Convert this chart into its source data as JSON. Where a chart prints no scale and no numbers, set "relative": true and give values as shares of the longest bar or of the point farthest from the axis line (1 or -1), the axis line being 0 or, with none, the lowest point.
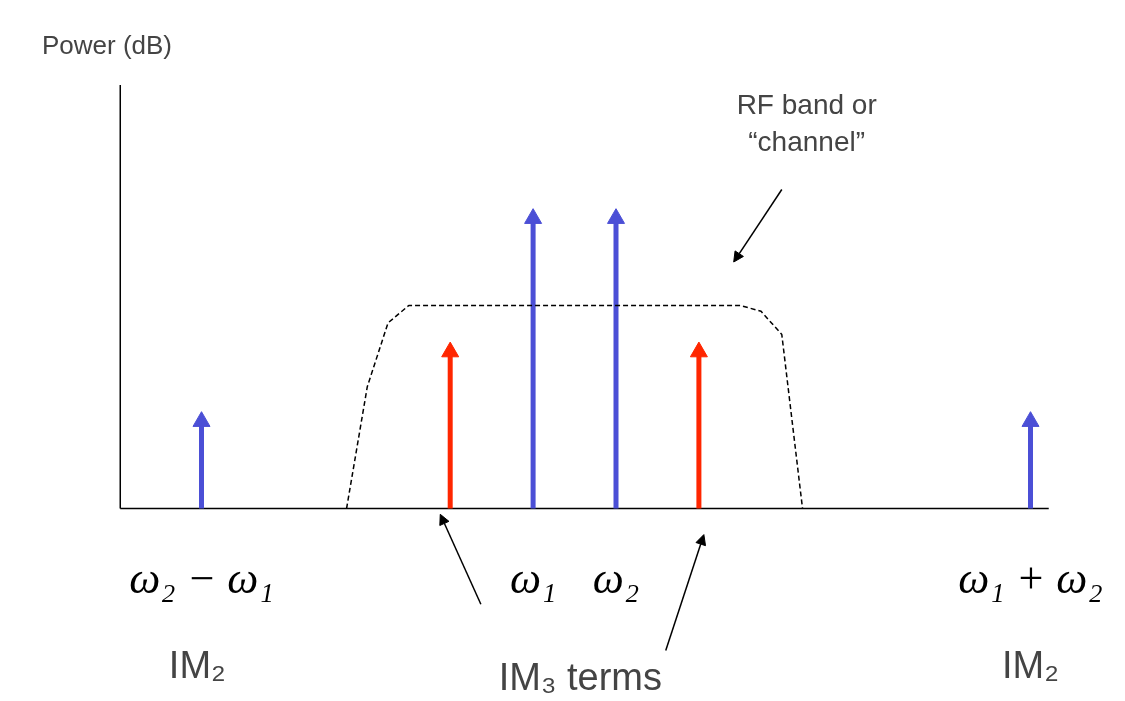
{
  "chart_data": {
    "type": "lollipop",
    "relative": true,
    "categories": [
      "ω₂ − ω₁",
      null,
      null,
      null,
      null,
      null,
      null,
      null,
      null,
      null,
      null,
      null,
      null,
      null,
      null,
      null,
      "ω₁",
      null,
      null,
      null,
      "ω₂",
      null,
      null,
      null,
      null,
      null,
      null,
      null,
      null,
      null,
      null,
      null,
      null,
      null,
      null,
      null,
      null,
      null,
      null,
      null,
      "ω₁ + ω₂"
    ],
    "series": [
      {
        "color": "#4b4fd6",
        "values": [
          0.3,
          null,
          null,
          null,
          null,
          null,
          null,
          null,
          null,
          null,
          null,
          null,
          null,
          null,
          null,
          null,
          1,
          null,
          null,
          null,
          1,
          null,
          null,
          null,
          null,
          null,
          null,
          null,
          null,
          null,
          null,
          null,
          null,
          null,
          null,
          null,
          null,
          null,
          null,
          null,
          0.3
        ]
      },
      {
        "color": "#ff2600",
        "values": [
          null,
          null,
          null,
          null,
          null,
          null,
          null,
          null,
          null,
          null,
          null,
          null,
          0.54,
          null,
          null,
          null,
          null,
          null,
          null,
          null,
          null,
          null,
          null,
          null,
          0.54,
          null,
          null,
          null,
          null,
          null,
          null,
          null,
          null,
          null,
          null,
          null,
          null,
          null,
          null,
          null,
          null
        ]
      },
      {
        "type": "line",
        "line_style": "dashed",
        "marker": "none",
        "color": "#000000",
        "values": [
          null,
          null,
          null,
          null,
          null,
          null,
          null,
          0,
          0.42,
          0.64,
          0.7,
          0.7,
          0.7,
          0.7,
          0.7,
          0.7,
          0.7,
          0.7,
          0.7,
          0.7,
          0.7,
          0.7,
          0.7,
          0.7,
          0.7,
          0.7,
          0.7,
          0.68,
          0.6,
          0,
          null,
          null,
          null,
          null,
          null,
          null,
          null,
          null,
          null,
          null,
          null
        ]
      }
    ],
    "marker": "triangle",
    "grid": false,
    "tick_labels": "x",
    "annotations": [
      "Power (dB)",
      "RF band or\n“channel”",
      "IM₂",
      "IM₃ terms",
      "IM₂"
    ]
  }
}
